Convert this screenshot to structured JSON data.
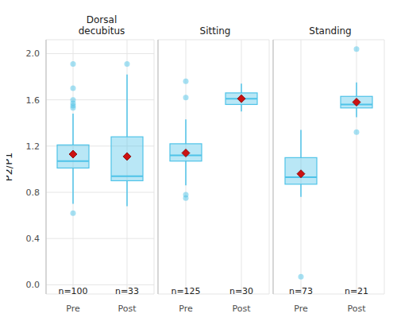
{
  "chart_data": {
    "type": "boxplot",
    "y_label": "P2/P1",
    "ylim": [
      -0.08,
      2.12
    ],
    "yticks": [
      {
        "value": 0,
        "label": "0.0"
      },
      {
        "value": 0.4,
        "label": "0.4"
      },
      {
        "value": 0.8,
        "label": "0.8"
      },
      {
        "value": 1.2,
        "label": "1.2"
      },
      {
        "value": 1.6,
        "label": "1.6"
      },
      {
        "value": 2,
        "label": "2.0"
      }
    ],
    "grid": true,
    "color": "#4fc3e8",
    "mean_color": "#cc1111",
    "panels": [
      {
        "title": "Dorsal decubitus",
        "categories": [
          "Pre",
          "Post"
        ],
        "n": [
          {
            "value": 100,
            "label": "n=100"
          },
          {
            "value": 33,
            "label": "n=33"
          }
        ],
        "boxes": [
          {
            "whisker_low": 0.7,
            "q1": 1.01,
            "median": 1.07,
            "q3": 1.21,
            "whisker_high": 1.48,
            "mean": 1.13,
            "outliers": [
              1.91,
              1.7,
              1.6,
              1.57,
              1.55,
              1.53,
              0.62
            ]
          },
          {
            "whisker_low": 0.68,
            "q1": 0.9,
            "median": 0.94,
            "q3": 1.28,
            "whisker_high": 1.82,
            "mean": 1.11,
            "outliers": [
              1.91
            ]
          }
        ]
      },
      {
        "title": "Sitting",
        "categories": [
          "Pre",
          "Post"
        ],
        "n": [
          {
            "value": 125,
            "label": "n=125"
          },
          {
            "value": 30,
            "label": "n=30"
          }
        ],
        "boxes": [
          {
            "whisker_low": 0.86,
            "q1": 1.07,
            "median": 1.12,
            "q3": 1.22,
            "whisker_high": 1.43,
            "mean": 1.14,
            "outliers": [
              1.76,
              1.62,
              0.78,
              0.75
            ]
          },
          {
            "whisker_low": 1.5,
            "q1": 1.56,
            "median": 1.61,
            "q3": 1.66,
            "whisker_high": 1.74,
            "mean": 1.61,
            "outliers": []
          }
        ]
      },
      {
        "title": "Standing",
        "categories": [
          "Pre",
          "Post"
        ],
        "n": [
          {
            "value": 73,
            "label": "n=73"
          },
          {
            "value": 21,
            "label": "n=21"
          }
        ],
        "boxes": [
          {
            "whisker_low": 0.76,
            "q1": 0.87,
            "median": 0.93,
            "q3": 1.1,
            "whisker_high": 1.34,
            "mean": 0.96,
            "outliers": [
              0.07
            ]
          },
          {
            "whisker_low": 1.45,
            "q1": 1.53,
            "median": 1.56,
            "q3": 1.63,
            "whisker_high": 1.75,
            "mean": 1.58,
            "outliers": [
              2.04,
              1.32
            ]
          }
        ]
      }
    ]
  }
}
